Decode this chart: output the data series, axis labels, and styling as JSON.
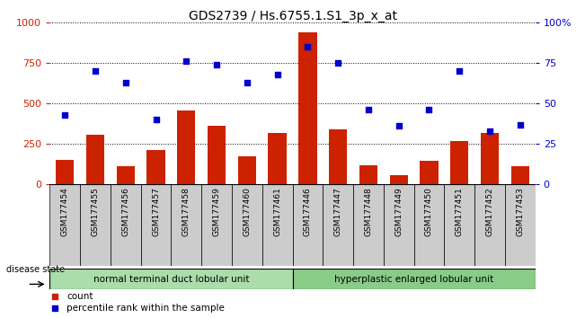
{
  "title": "GDS2739 / Hs.6755.1.S1_3p_x_at",
  "samples": [
    "GSM177454",
    "GSM177455",
    "GSM177456",
    "GSM177457",
    "GSM177458",
    "GSM177459",
    "GSM177460",
    "GSM177461",
    "GSM177446",
    "GSM177447",
    "GSM177448",
    "GSM177449",
    "GSM177450",
    "GSM177451",
    "GSM177452",
    "GSM177453"
  ],
  "counts": [
    150,
    305,
    115,
    215,
    455,
    360,
    175,
    320,
    940,
    340,
    120,
    55,
    145,
    265,
    320,
    110
  ],
  "percentiles": [
    43,
    70,
    63,
    40,
    76,
    74,
    63,
    68,
    85,
    75,
    46,
    36,
    46,
    70,
    33,
    37
  ],
  "group1_label": "normal terminal duct lobular unit",
  "group2_label": "hyperplastic enlarged lobular unit",
  "group1_count": 8,
  "group2_count": 8,
  "bar_color": "#cc2200",
  "scatter_color": "#0000cc",
  "ylim_left": [
    0,
    1000
  ],
  "ylim_right": [
    0,
    100
  ],
  "yticks_left": [
    0,
    250,
    500,
    750,
    1000
  ],
  "yticks_right": [
    0,
    25,
    50,
    75,
    100
  ],
  "disease_state_label": "disease state",
  "legend_count_label": "count",
  "legend_pct_label": "percentile rank within the sample",
  "group1_color": "#aaddaa",
  "group2_color": "#88cc88",
  "title_fontsize": 10,
  "tick_label_fontsize": 6.5,
  "axis_label_color_left": "#cc2200",
  "axis_label_color_right": "#0000cc",
  "gray_box_color": "#cccccc"
}
